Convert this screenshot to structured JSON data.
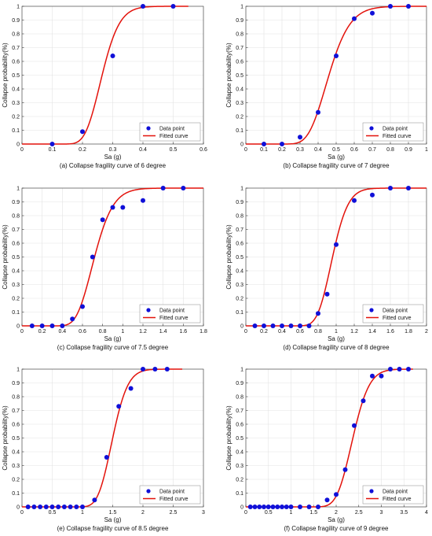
{
  "figure": {
    "marker_color": "#1010d8",
    "curve_color": "#e3120b"
  },
  "chart_data": [
    {
      "type": "scatter",
      "caption": "(a) Collapse fragility curve of 6 degree",
      "xlabel": "Sa (g)",
      "ylabel": "Collapse probability(%)",
      "xlim": [
        0,
        0.6
      ],
      "ylim": [
        0,
        1
      ],
      "xticks": [
        "0",
        "0.1",
        "0.2",
        "0.3",
        "0.4",
        "0.5",
        "0.6"
      ],
      "xtick_values": [
        0,
        0.1,
        0.2,
        0.3,
        0.4,
        0.5,
        0.6
      ],
      "yticks": [
        "0",
        "0.1",
        "0.2",
        "0.3",
        "0.4",
        "0.5",
        "0.6",
        "0.7",
        "0.8",
        "0.9",
        "1"
      ],
      "grid": true,
      "legend_position": "bottom-right",
      "series": [
        {
          "name": "Data point",
          "kind": "points",
          "points": [
            [
              0.1,
              0
            ],
            [
              0.2,
              0.09
            ],
            [
              0.3,
              0.64
            ],
            [
              0.4,
              1.0
            ],
            [
              0.5,
              1.0
            ]
          ]
        },
        {
          "name": "Fitted curve",
          "kind": "lognormal-cdf",
          "median": 0.265,
          "beta": 0.17,
          "x_range": [
            0,
            0.55
          ]
        }
      ]
    },
    {
      "type": "scatter",
      "caption": "(b) Collapse fragility curve of 7 degree",
      "xlabel": "Sa (g)",
      "ylabel": "Collapse probability(%)",
      "xlim": [
        0,
        1
      ],
      "ylim": [
        0,
        1
      ],
      "xticks": [
        "0",
        "0.1",
        "0.2",
        "0.3",
        "0.4",
        "0.5",
        "0.6",
        "0.7",
        "0.8",
        "0.9",
        "1"
      ],
      "xtick_values": [
        0,
        0.1,
        0.2,
        0.3,
        0.4,
        0.5,
        0.6,
        0.7,
        0.8,
        0.9,
        1
      ],
      "yticks": [
        "0",
        "0.1",
        "0.2",
        "0.3",
        "0.4",
        "0.5",
        "0.6",
        "0.7",
        "0.8",
        "0.9",
        "1"
      ],
      "grid": true,
      "legend_position": "bottom-right",
      "series": [
        {
          "name": "Data point",
          "kind": "points",
          "points": [
            [
              0.1,
              0
            ],
            [
              0.2,
              0
            ],
            [
              0.3,
              0.05
            ],
            [
              0.4,
              0.23
            ],
            [
              0.5,
              0.64
            ],
            [
              0.6,
              0.91
            ],
            [
              0.7,
              0.95
            ],
            [
              0.8,
              1.0
            ],
            [
              0.9,
              1.0
            ]
          ]
        },
        {
          "name": "Fitted curve",
          "kind": "lognormal-cdf",
          "median": 0.46,
          "beta": 0.2,
          "x_range": [
            0,
            1
          ]
        }
      ]
    },
    {
      "type": "scatter",
      "caption": "(c) Collapse fragility curve of 7.5 degree",
      "xlabel": "Sa (g)",
      "ylabel": "Collapse probability(%)",
      "xlim": [
        0,
        1.8
      ],
      "ylim": [
        0,
        1
      ],
      "xticks": [
        "0",
        "0.2",
        "0.4",
        "0.6",
        "0.8",
        "1",
        "1.2",
        "1.4",
        "1.6",
        "1.8"
      ],
      "xtick_values": [
        0,
        0.2,
        0.4,
        0.6,
        0.8,
        1.0,
        1.2,
        1.4,
        1.6,
        1.8
      ],
      "yticks": [
        "0",
        "0.1",
        "0.2",
        "0.3",
        "0.4",
        "0.5",
        "0.6",
        "0.7",
        "0.8",
        "0.9",
        "1"
      ],
      "grid": true,
      "legend_position": "bottom-right",
      "series": [
        {
          "name": "Data point",
          "kind": "points",
          "points": [
            [
              0.1,
              0
            ],
            [
              0.2,
              0
            ],
            [
              0.3,
              0
            ],
            [
              0.4,
              0
            ],
            [
              0.5,
              0.05
            ],
            [
              0.6,
              0.14
            ],
            [
              0.7,
              0.5
            ],
            [
              0.8,
              0.77
            ],
            [
              0.9,
              0.86
            ],
            [
              1.0,
              0.86
            ],
            [
              1.2,
              0.91
            ],
            [
              1.4,
              1.0
            ],
            [
              1.6,
              1.0
            ]
          ]
        },
        {
          "name": "Fitted curve",
          "kind": "lognormal-cdf",
          "median": 0.72,
          "beta": 0.2,
          "x_range": [
            0,
            1.8
          ]
        }
      ]
    },
    {
      "type": "scatter",
      "caption": "(d) Collapse fragility curve of 8 degree",
      "xlabel": "Sa (g)",
      "ylabel": "Collapse probability(%)",
      "xlim": [
        0,
        2
      ],
      "ylim": [
        0,
        1
      ],
      "xticks": [
        "0",
        "0.2",
        "0.4",
        "0.6",
        "0.8",
        "1",
        "1.2",
        "1.4",
        "1.6",
        "1.8",
        "2"
      ],
      "xtick_values": [
        0,
        0.2,
        0.4,
        0.6,
        0.8,
        1.0,
        1.2,
        1.4,
        1.6,
        1.8,
        2.0
      ],
      "yticks": [
        "0",
        "0.1",
        "0.2",
        "0.3",
        "0.4",
        "0.5",
        "0.6",
        "0.7",
        "0.8",
        "0.9",
        "1"
      ],
      "grid": true,
      "legend_position": "bottom-right",
      "series": [
        {
          "name": "Data point",
          "kind": "points",
          "points": [
            [
              0.1,
              0
            ],
            [
              0.2,
              0
            ],
            [
              0.3,
              0
            ],
            [
              0.4,
              0
            ],
            [
              0.5,
              0
            ],
            [
              0.6,
              0
            ],
            [
              0.7,
              0
            ],
            [
              0.8,
              0.09
            ],
            [
              0.9,
              0.23
            ],
            [
              1.0,
              0.59
            ],
            [
              1.2,
              0.91
            ],
            [
              1.4,
              0.95
            ],
            [
              1.6,
              1.0
            ],
            [
              1.8,
              1.0
            ]
          ]
        },
        {
          "name": "Fitted curve",
          "kind": "lognormal-cdf",
          "median": 0.96,
          "beta": 0.14,
          "x_range": [
            0,
            2
          ]
        }
      ]
    },
    {
      "type": "scatter",
      "caption": "(e) Collapse fragility curve of 8.5 degree",
      "xlabel": "Sa (g)",
      "ylabel": "Collapse probability(%)",
      "xlim": [
        0,
        3
      ],
      "ylim": [
        0,
        1
      ],
      "xticks": [
        "0",
        "0.5",
        "1",
        "1.5",
        "2",
        "2.5",
        "3"
      ],
      "xtick_values": [
        0,
        0.5,
        1.0,
        1.5,
        2.0,
        2.5,
        3.0
      ],
      "yticks": [
        "0",
        "0.1",
        "0.2",
        "0.3",
        "0.4",
        "0.5",
        "0.6",
        "0.7",
        "0.8",
        "0.9",
        "1"
      ],
      "grid": true,
      "legend_position": "bottom-right",
      "series": [
        {
          "name": "Data point",
          "kind": "points",
          "points": [
            [
              0.1,
              0
            ],
            [
              0.2,
              0
            ],
            [
              0.3,
              0
            ],
            [
              0.4,
              0
            ],
            [
              0.5,
              0
            ],
            [
              0.6,
              0
            ],
            [
              0.7,
              0
            ],
            [
              0.8,
              0
            ],
            [
              0.9,
              0
            ],
            [
              1.0,
              0
            ],
            [
              1.2,
              0.05
            ],
            [
              1.4,
              0.36
            ],
            [
              1.6,
              0.73
            ],
            [
              1.8,
              0.86
            ],
            [
              2.0,
              1.0
            ],
            [
              2.2,
              1.0
            ],
            [
              2.4,
              1.0
            ]
          ]
        },
        {
          "name": "Fitted curve",
          "kind": "lognormal-cdf",
          "median": 1.5,
          "beta": 0.13,
          "x_range": [
            0,
            2.65
          ]
        }
      ]
    },
    {
      "type": "scatter",
      "caption": "(f) Collapse fragility curve of 9 degree",
      "xlabel": "Sa (g)",
      "ylabel": "Collapse probability(%)",
      "xlim": [
        0,
        4
      ],
      "ylim": [
        0,
        1
      ],
      "xticks": [
        "0",
        "0.5",
        "1",
        "1.5",
        "2",
        "2.5",
        "3",
        "3.5",
        "4"
      ],
      "xtick_values": [
        0,
        0.5,
        1.0,
        1.5,
        2.0,
        2.5,
        3.0,
        3.5,
        4.0
      ],
      "yticks": [
        "0",
        "0.1",
        "0.2",
        "0.3",
        "0.4",
        "0.5",
        "0.6",
        "0.7",
        "0.8",
        "0.9",
        "1"
      ],
      "grid": true,
      "legend_position": "bottom-right",
      "series": [
        {
          "name": "Data point",
          "kind": "points",
          "points": [
            [
              0.1,
              0
            ],
            [
              0.2,
              0
            ],
            [
              0.3,
              0
            ],
            [
              0.4,
              0
            ],
            [
              0.5,
              0
            ],
            [
              0.6,
              0
            ],
            [
              0.7,
              0
            ],
            [
              0.8,
              0
            ],
            [
              0.9,
              0
            ],
            [
              1.0,
              0
            ],
            [
              1.2,
              0
            ],
            [
              1.4,
              0
            ],
            [
              1.6,
              0
            ],
            [
              1.8,
              0.05
            ],
            [
              2.0,
              0.09
            ],
            [
              2.2,
              0.27
            ],
            [
              2.4,
              0.59
            ],
            [
              2.6,
              0.77
            ],
            [
              2.8,
              0.95
            ],
            [
              3.0,
              0.95
            ],
            [
              3.2,
              1.0
            ],
            [
              3.4,
              1.0
            ],
            [
              3.6,
              1.0
            ]
          ]
        },
        {
          "name": "Fitted curve",
          "kind": "lognormal-cdf",
          "median": 2.37,
          "beta": 0.12,
          "x_range": [
            0,
            3.7
          ]
        }
      ]
    }
  ]
}
